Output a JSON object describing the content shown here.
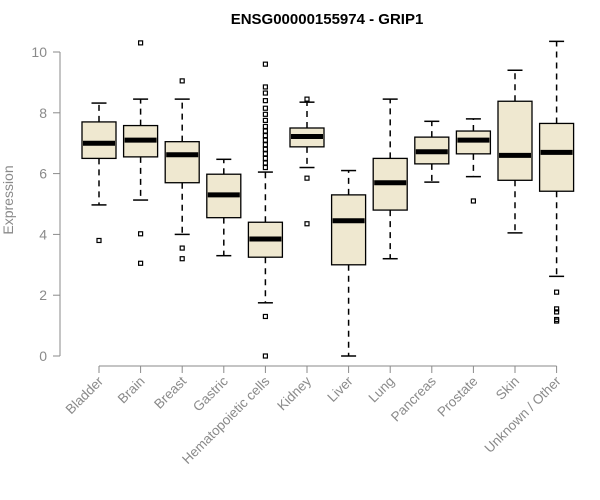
{
  "chart_data": {
    "type": "boxplot",
    "title": "ENSG00000155974 - GRIP1",
    "ylabel": "Expression",
    "xlabel": "",
    "ylim": [
      0,
      10.4
    ],
    "yticks": [
      0,
      2,
      4,
      6,
      8,
      10
    ],
    "grid": false,
    "colors": {
      "box_fill": "#efe8d0",
      "box_stroke": "#000000",
      "axis": "#8a8a8a"
    },
    "categories": [
      "Bladder",
      "Brain",
      "Breast",
      "Gastric",
      "Hematopoietic cells",
      "Kidney",
      "Liver",
      "Lung",
      "Pancreas",
      "Prostate",
      "Skin",
      "Unknown / Other"
    ],
    "boxes": [
      {
        "category": "Bladder",
        "whisker_low": 4.97,
        "q1": 6.5,
        "median": 7.0,
        "q3": 7.7,
        "whisker_high": 8.32,
        "outliers": [
          3.8
        ]
      },
      {
        "category": "Brain",
        "whisker_low": 5.13,
        "q1": 6.55,
        "median": 7.1,
        "q3": 7.58,
        "whisker_high": 8.45,
        "outliers": [
          10.3,
          4.02,
          3.05
        ]
      },
      {
        "category": "Breast",
        "whisker_low": 4.0,
        "q1": 5.7,
        "median": 6.62,
        "q3": 7.05,
        "whisker_high": 8.45,
        "outliers": [
          9.05,
          3.55,
          3.2
        ]
      },
      {
        "category": "Gastric",
        "whisker_low": 3.3,
        "q1": 4.55,
        "median": 5.3,
        "q3": 5.98,
        "whisker_high": 6.47,
        "outliers": []
      },
      {
        "category": "Hematopoietic cells",
        "whisker_low": 1.75,
        "q1": 3.25,
        "median": 3.85,
        "q3": 4.4,
        "whisker_high": 6.05,
        "outliers": [
          9.6,
          8.85,
          8.65,
          8.4,
          8.15,
          7.95,
          7.75,
          7.55,
          7.4,
          7.25,
          7.1,
          6.95,
          6.8,
          6.65,
          6.5,
          6.35,
          6.2,
          1.3,
          0.0
        ]
      },
      {
        "category": "Kidney",
        "whisker_low": 6.2,
        "q1": 6.88,
        "median": 7.22,
        "q3": 7.5,
        "whisker_high": 8.35,
        "outliers": [
          8.45,
          5.85,
          4.35
        ]
      },
      {
        "category": "Liver",
        "whisker_low": 0.0,
        "q1": 3.0,
        "median": 4.45,
        "q3": 5.3,
        "whisker_high": 6.1,
        "outliers": []
      },
      {
        "category": "Lung",
        "whisker_low": 3.2,
        "q1": 4.8,
        "median": 5.7,
        "q3": 6.5,
        "whisker_high": 8.45,
        "outliers": []
      },
      {
        "category": "Pancreas",
        "whisker_low": 5.72,
        "q1": 6.32,
        "median": 6.72,
        "q3": 7.2,
        "whisker_high": 7.72,
        "outliers": []
      },
      {
        "category": "Prostate",
        "whisker_low": 5.9,
        "q1": 6.65,
        "median": 7.1,
        "q3": 7.4,
        "whisker_high": 7.8,
        "outliers": [
          5.1
        ]
      },
      {
        "category": "Skin",
        "whisker_low": 4.05,
        "q1": 5.78,
        "median": 6.6,
        "q3": 8.38,
        "whisker_high": 9.4,
        "outliers": []
      },
      {
        "category": "Unknown / Other",
        "whisker_low": 2.62,
        "q1": 5.42,
        "median": 6.7,
        "q3": 7.65,
        "whisker_high": 10.35,
        "outliers": [
          2.1,
          1.55,
          1.45,
          1.2,
          1.15
        ]
      }
    ]
  }
}
